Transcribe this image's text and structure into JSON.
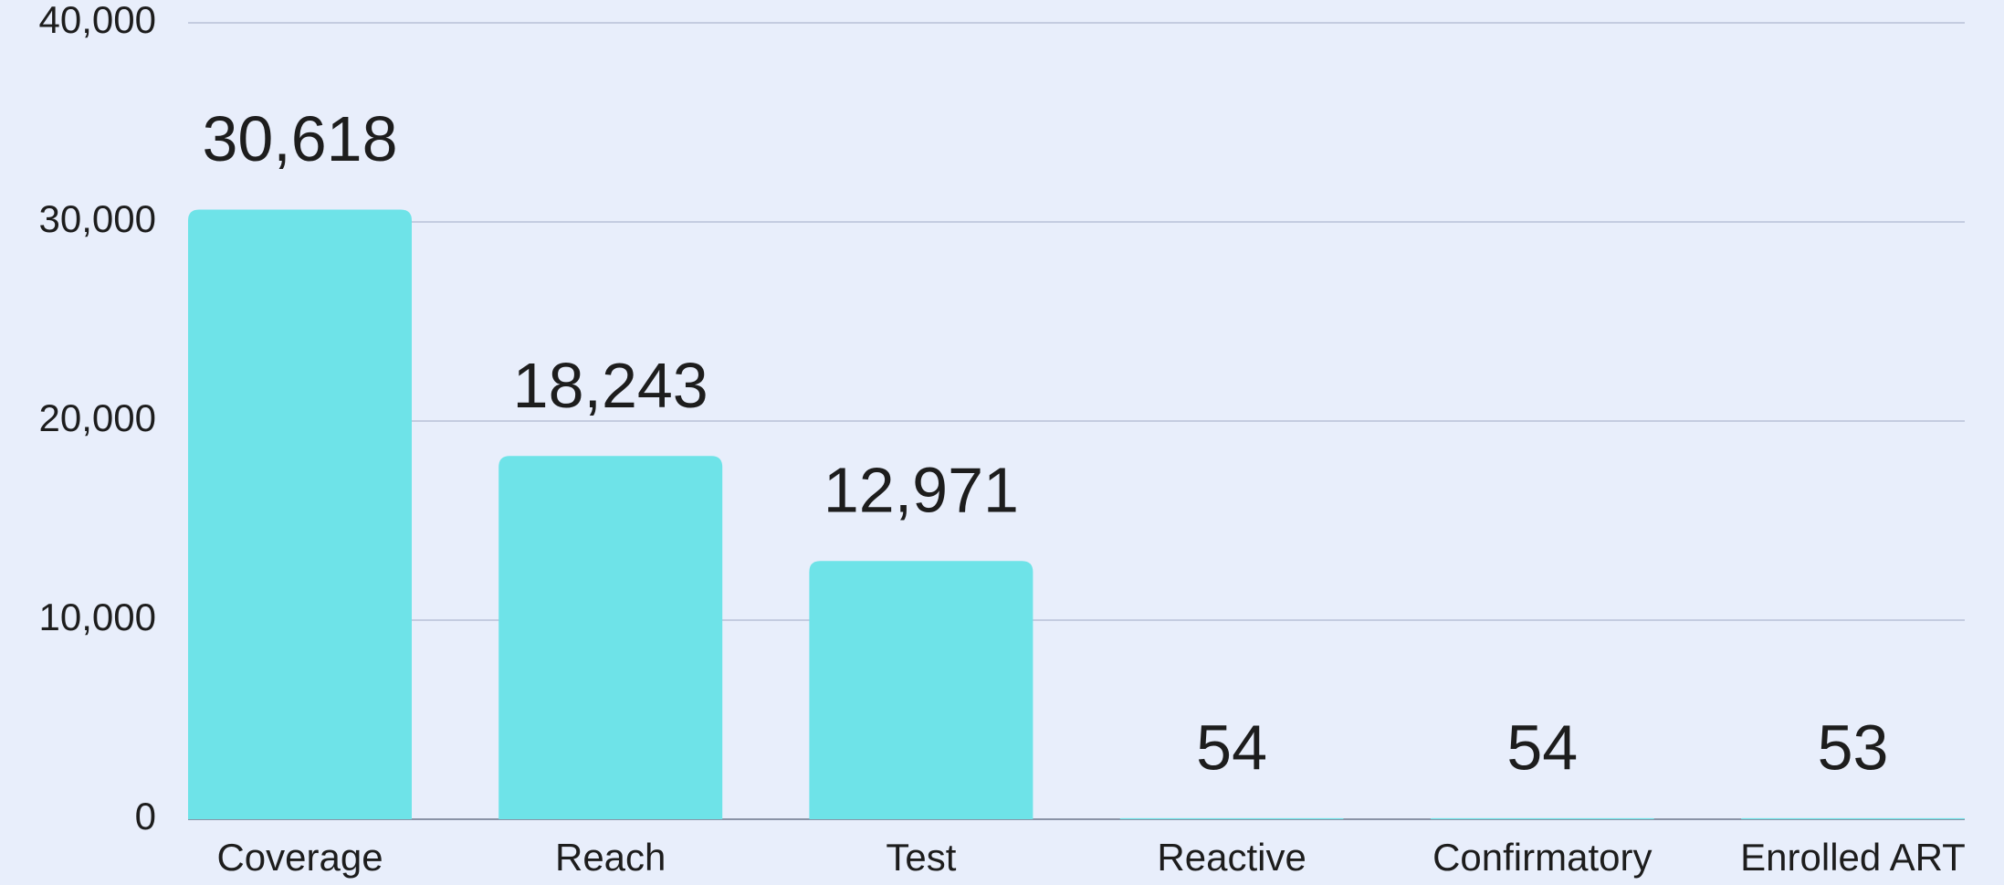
{
  "chart_data": {
    "type": "bar",
    "categories": [
      "Coverage",
      "Reach",
      "Test",
      "Reactive",
      "Confirmatory",
      "Enrolled ART"
    ],
    "values": [
      30618,
      18243,
      12971,
      54,
      54,
      53
    ],
    "value_labels": [
      "30,618",
      "18,243",
      "12,971",
      "54",
      "54",
      "53"
    ],
    "color": "#6ee3e8",
    "ylim": [
      0,
      40000
    ],
    "yticks": [
      0,
      {
        "value": 10000,
        "label": "10,000"
      },
      {
        "value": 20000,
        "label": "20,000"
      },
      {
        "value": 30000,
        "label": "30,000"
      },
      {
        "value": 40000,
        "label": "40,000"
      }
    ],
    "grid": true
  }
}
